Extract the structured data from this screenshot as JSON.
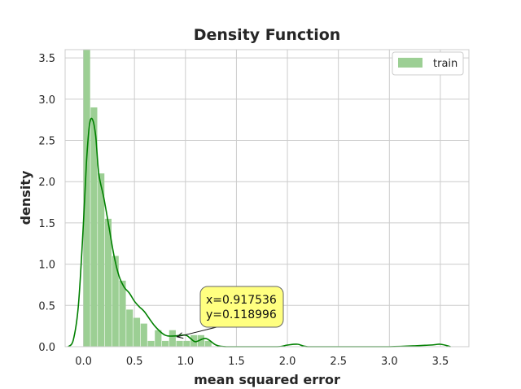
{
  "chart_data": {
    "type": "bar",
    "title": "Density Function",
    "xlabel": "mean squared error",
    "ylabel": "density",
    "xlim": [
      -0.18,
      3.78
    ],
    "ylim": [
      0,
      3.6
    ],
    "xticks": [
      "0.0",
      "0.5",
      "1.0",
      "1.5",
      "2.0",
      "2.5",
      "3.0",
      "3.5"
    ],
    "yticks": [
      "0.0",
      "0.5",
      "1.0",
      "1.5",
      "2.0",
      "2.5",
      "3.0",
      "3.5"
    ],
    "grid": true,
    "legend": {
      "position": "top-right",
      "entries": [
        "train"
      ]
    },
    "colors": {
      "bars": "#9ccf94",
      "kde": "#008000",
      "grid": "#cccccc",
      "annotation_fill": "#ffff80"
    },
    "histogram": {
      "name": "train",
      "bin_width": 0.07,
      "bins": [
        {
          "x0": 0.0,
          "value": 3.6
        },
        {
          "x0": 0.07,
          "value": 2.9
        },
        {
          "x0": 0.14,
          "value": 2.1
        },
        {
          "x0": 0.21,
          "value": 1.55
        },
        {
          "x0": 0.28,
          "value": 1.1
        },
        {
          "x0": 0.35,
          "value": 0.8
        },
        {
          "x0": 0.42,
          "value": 0.45
        },
        {
          "x0": 0.49,
          "value": 0.35
        },
        {
          "x0": 0.56,
          "value": 0.28
        },
        {
          "x0": 0.63,
          "value": 0.07
        },
        {
          "x0": 0.7,
          "value": 0.2
        },
        {
          "x0": 0.77,
          "value": 0.07
        },
        {
          "x0": 0.84,
          "value": 0.2
        },
        {
          "x0": 0.91,
          "value": 0.07
        },
        {
          "x0": 0.98,
          "value": 0.07
        },
        {
          "x0": 1.05,
          "value": 0.14
        },
        {
          "x0": 1.12,
          "value": 0.14
        },
        {
          "x0": 1.19,
          "value": 0.07
        }
      ]
    },
    "kde": {
      "x": [
        -0.15,
        -0.1,
        -0.05,
        0.0,
        0.03,
        0.06,
        0.09,
        0.12,
        0.15,
        0.2,
        0.25,
        0.3,
        0.35,
        0.4,
        0.45,
        0.5,
        0.55,
        0.6,
        0.7,
        0.8,
        0.9,
        1.0,
        1.05,
        1.1,
        1.2,
        1.3,
        1.4,
        1.6,
        1.9,
        2.0,
        2.1,
        2.2,
        2.5,
        3.0,
        3.4,
        3.5,
        3.6
      ],
      "y": [
        0.0,
        0.08,
        0.5,
        1.5,
        2.25,
        2.7,
        2.75,
        2.55,
        2.1,
        1.8,
        1.45,
        1.1,
        0.85,
        0.72,
        0.65,
        0.55,
        0.48,
        0.42,
        0.25,
        0.14,
        0.13,
        0.14,
        0.1,
        0.06,
        0.1,
        0.02,
        0.0,
        0.0,
        0.0,
        0.02,
        0.03,
        0.0,
        0.0,
        0.0,
        0.02,
        0.03,
        0.0
      ]
    },
    "annotation": {
      "point_x": 0.917536,
      "point_y": 0.118996,
      "lines": [
        "x=0.917536",
        "y=0.118996"
      ]
    }
  }
}
